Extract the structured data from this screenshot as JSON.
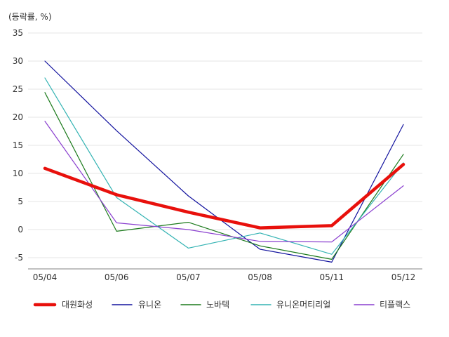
{
  "chart_data": {
    "type": "line",
    "title": "",
    "xlabel": "",
    "ylabel": "(등락률, %)",
    "categories": [
      "05/04",
      "05/06",
      "05/07",
      "05/08",
      "05/11",
      "05/12"
    ],
    "ylim": [
      -7,
      35
    ],
    "yticks": [
      35,
      30,
      25,
      20,
      15,
      10,
      5,
      0,
      -5
    ],
    "grid": true,
    "legend": "bottom",
    "series": [
      {
        "name": "대원화성",
        "values": [
          10.9,
          6.2,
          3.1,
          0.3,
          0.7,
          11.6
        ],
        "color": "#e8100c"
      },
      {
        "name": "유니온",
        "values": [
          30.0,
          17.6,
          6.0,
          -3.5,
          -5.8,
          18.7
        ],
        "color": "#12129e"
      },
      {
        "name": "노바텍",
        "values": [
          24.4,
          -0.3,
          1.3,
          -2.9,
          -5.3,
          13.4
        ],
        "color": "#1b7a1b"
      },
      {
        "name": "유니온머티리얼",
        "values": [
          27.0,
          5.7,
          -3.3,
          -0.6,
          -4.4,
          11.9
        ],
        "color": "#33b3b3"
      },
      {
        "name": "티플랙스",
        "values": [
          19.3,
          1.2,
          0.0,
          -2.1,
          -2.2,
          7.8
        ],
        "color": "#8a3fcf"
      }
    ]
  }
}
